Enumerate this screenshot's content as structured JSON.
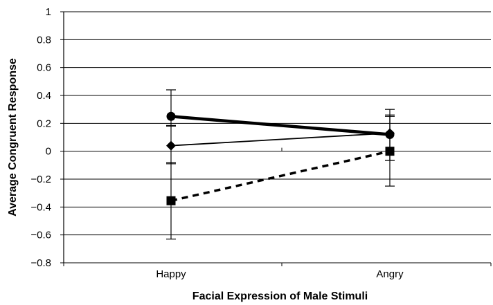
{
  "chart_data": {
    "type": "line",
    "title": "",
    "xlabel": "Facial Expression of Male Stimuli",
    "ylabel": "Average Congruent Response",
    "categories": [
      "Happy",
      "Angry"
    ],
    "ylim": [
      -0.8,
      1.0
    ],
    "yticks": [
      1,
      0.8,
      0.6,
      0.4,
      0.2,
      0,
      -0.2,
      -0.4,
      -0.6,
      -0.8
    ],
    "ytick_labels": [
      "1",
      "0.8",
      "0.6",
      "0.4",
      "0.2",
      "0",
      "−0.2",
      "−0.4",
      "−0.6",
      "−0.8"
    ],
    "grid": true,
    "legend": "none",
    "series": [
      {
        "marker": "circle",
        "line_style": "thick-solid",
        "values": [
          0.25,
          0.12
        ],
        "error_low": [
          0.185,
          -0.065
        ],
        "error_high": [
          0.44,
          0.26
        ]
      },
      {
        "marker": "diamond",
        "line_style": "thin-solid",
        "values": [
          0.04,
          0.13
        ],
        "error_low": [
          -0.09,
          -0.065
        ],
        "error_high": [
          0.18,
          0.3
        ]
      },
      {
        "marker": "square",
        "line_style": "dashed",
        "values": [
          -0.355,
          0.0
        ],
        "error_low": [
          -0.63,
          -0.25
        ],
        "error_high": [
          -0.08,
          0.25
        ]
      }
    ]
  }
}
